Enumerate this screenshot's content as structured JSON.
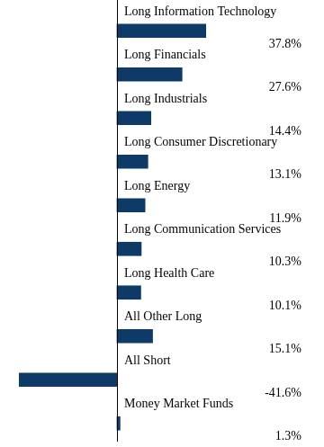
{
  "chart_data": {
    "type": "bar",
    "orientation": "horizontal",
    "categories": [
      "Long Information Technology",
      "Long Financials",
      "Long Industrials",
      "Long Consumer Discretionary",
      "Long Energy",
      "Long Communication Services",
      "Long Health Care",
      "All Other Long",
      "All Short",
      "Money Market Funds"
    ],
    "values": [
      37.8,
      27.6,
      14.4,
      13.1,
      11.9,
      10.3,
      10.1,
      15.1,
      -41.6,
      1.3
    ],
    "value_labels": [
      "37.8%",
      "27.6%",
      "14.4%",
      "13.1%",
      "11.9%",
      "10.3%",
      "10.1%",
      "15.1%",
      "-41.6%",
      "1.3%"
    ],
    "color": "#0e3a68",
    "data_labels": true,
    "tick_labels": false,
    "grid": false
  }
}
